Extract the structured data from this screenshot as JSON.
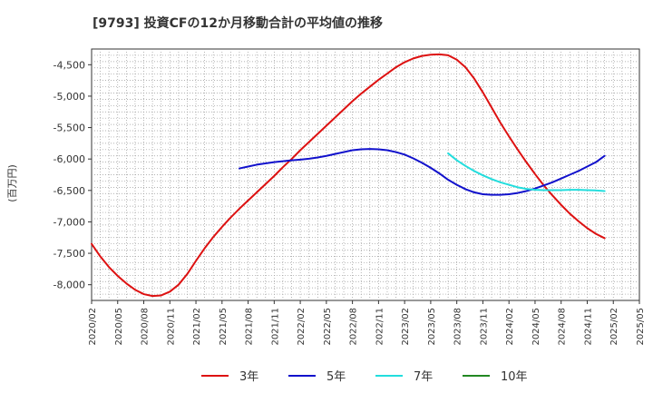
{
  "chart_data": {
    "type": "line",
    "title": "[9793]  投資CFの12か月移動合計の平均値の推移",
    "ylabel": "(百万円)",
    "xlabel": "",
    "ylim": [
      -8250,
      -4250
    ],
    "yticks": [
      -4500,
      -5000,
      -5500,
      -6000,
      -6500,
      -7000,
      -7500,
      -8000
    ],
    "ytick_labels": [
      "-4,500",
      "-5,000",
      "-5,500",
      "-6,000",
      "-6,500",
      "-7,000",
      "-7,500",
      "-8,000"
    ],
    "xlim": [
      "2020-02",
      "2025-05"
    ],
    "xtick_labels": [
      "2020/02",
      "2020/05",
      "2020/08",
      "2020/11",
      "2021/02",
      "2021/05",
      "2021/08",
      "2021/11",
      "2022/02",
      "2022/05",
      "2022/08",
      "2022/11",
      "2023/02",
      "2023/05",
      "2023/08",
      "2023/11",
      "2024/02",
      "2024/05",
      "2024/08",
      "2024/11",
      "2025/02",
      "2025/05"
    ],
    "grid": true,
    "legend_position": "bottom",
    "series": [
      {
        "name": "3年",
        "color": "#dd1111",
        "points": [
          [
            "2020-02",
            -7350
          ],
          [
            "2020-03",
            -7550
          ],
          [
            "2020-04",
            -7720
          ],
          [
            "2020-05",
            -7860
          ],
          [
            "2020-06",
            -7980
          ],
          [
            "2020-07",
            -8080
          ],
          [
            "2020-08",
            -8150
          ],
          [
            "2020-09",
            -8180
          ],
          [
            "2020-10",
            -8170
          ],
          [
            "2020-11",
            -8110
          ],
          [
            "2020-12",
            -8000
          ],
          [
            "2021-01",
            -7830
          ],
          [
            "2021-02",
            -7620
          ],
          [
            "2021-03",
            -7420
          ],
          [
            "2021-04",
            -7240
          ],
          [
            "2021-05",
            -7080
          ],
          [
            "2021-06",
            -6930
          ],
          [
            "2021-07",
            -6790
          ],
          [
            "2021-08",
            -6660
          ],
          [
            "2021-09",
            -6530
          ],
          [
            "2021-10",
            -6400
          ],
          [
            "2021-11",
            -6270
          ],
          [
            "2021-12",
            -6130
          ],
          [
            "2022-01",
            -6000
          ],
          [
            "2022-02",
            -5860
          ],
          [
            "2022-03",
            -5730
          ],
          [
            "2022-04",
            -5600
          ],
          [
            "2022-05",
            -5470
          ],
          [
            "2022-06",
            -5340
          ],
          [
            "2022-07",
            -5210
          ],
          [
            "2022-08",
            -5080
          ],
          [
            "2022-09",
            -4960
          ],
          [
            "2022-10",
            -4850
          ],
          [
            "2022-11",
            -4740
          ],
          [
            "2022-12",
            -4640
          ],
          [
            "2023-01",
            -4540
          ],
          [
            "2023-02",
            -4460
          ],
          [
            "2023-03",
            -4400
          ],
          [
            "2023-04",
            -4360
          ],
          [
            "2023-05",
            -4340
          ],
          [
            "2023-06",
            -4335
          ],
          [
            "2023-07",
            -4350
          ],
          [
            "2023-08",
            -4420
          ],
          [
            "2023-09",
            -4540
          ],
          [
            "2023-10",
            -4720
          ],
          [
            "2023-11",
            -4940
          ],
          [
            "2023-12",
            -5180
          ],
          [
            "2024-01",
            -5420
          ],
          [
            "2024-02",
            -5640
          ],
          [
            "2024-03",
            -5850
          ],
          [
            "2024-04",
            -6050
          ],
          [
            "2024-05",
            -6240
          ],
          [
            "2024-06",
            -6420
          ],
          [
            "2024-07",
            -6580
          ],
          [
            "2024-08",
            -6730
          ],
          [
            "2024-09",
            -6870
          ],
          [
            "2024-10",
            -6990
          ],
          [
            "2024-11",
            -7100
          ],
          [
            "2024-12",
            -7190
          ],
          [
            "2025-01",
            -7260
          ]
        ]
      },
      {
        "name": "5年",
        "color": "#1111cc",
        "points": [
          [
            "2021-07",
            -6150
          ],
          [
            "2021-08",
            -6120
          ],
          [
            "2021-09",
            -6090
          ],
          [
            "2021-10",
            -6070
          ],
          [
            "2021-11",
            -6050
          ],
          [
            "2021-12",
            -6035
          ],
          [
            "2022-01",
            -6020
          ],
          [
            "2022-02",
            -6010
          ],
          [
            "2022-03",
            -5995
          ],
          [
            "2022-04",
            -5975
          ],
          [
            "2022-05",
            -5950
          ],
          [
            "2022-06",
            -5920
          ],
          [
            "2022-07",
            -5890
          ],
          [
            "2022-08",
            -5860
          ],
          [
            "2022-09",
            -5845
          ],
          [
            "2022-10",
            -5840
          ],
          [
            "2022-11",
            -5845
          ],
          [
            "2022-12",
            -5860
          ],
          [
            "2023-01",
            -5890
          ],
          [
            "2023-02",
            -5930
          ],
          [
            "2023-03",
            -5990
          ],
          [
            "2023-04",
            -6060
          ],
          [
            "2023-05",
            -6140
          ],
          [
            "2023-06",
            -6230
          ],
          [
            "2023-07",
            -6330
          ],
          [
            "2023-08",
            -6410
          ],
          [
            "2023-09",
            -6480
          ],
          [
            "2023-10",
            -6530
          ],
          [
            "2023-11",
            -6560
          ],
          [
            "2023-12",
            -6570
          ],
          [
            "2024-01",
            -6570
          ],
          [
            "2024-02",
            -6560
          ],
          [
            "2024-03",
            -6540
          ],
          [
            "2024-04",
            -6510
          ],
          [
            "2024-05",
            -6470
          ],
          [
            "2024-06",
            -6420
          ],
          [
            "2024-07",
            -6370
          ],
          [
            "2024-08",
            -6310
          ],
          [
            "2024-09",
            -6250
          ],
          [
            "2024-10",
            -6190
          ],
          [
            "2024-11",
            -6120
          ],
          [
            "2024-12",
            -6050
          ],
          [
            "2025-01",
            -5950
          ]
        ]
      },
      {
        "name": "7年",
        "color": "#22dddd",
        "points": [
          [
            "2023-07",
            -5910
          ],
          [
            "2023-08",
            -6020
          ],
          [
            "2023-09",
            -6110
          ],
          [
            "2023-10",
            -6190
          ],
          [
            "2023-11",
            -6260
          ],
          [
            "2023-12",
            -6320
          ],
          [
            "2024-01",
            -6370
          ],
          [
            "2024-02",
            -6410
          ],
          [
            "2024-03",
            -6450
          ],
          [
            "2024-04",
            -6475
          ],
          [
            "2024-05",
            -6490
          ],
          [
            "2024-06",
            -6495
          ],
          [
            "2024-07",
            -6495
          ],
          [
            "2024-08",
            -6495
          ],
          [
            "2024-09",
            -6490
          ],
          [
            "2024-10",
            -6490
          ],
          [
            "2024-11",
            -6495
          ],
          [
            "2024-12",
            -6500
          ],
          [
            "2025-01",
            -6510
          ]
        ]
      },
      {
        "name": "10年",
        "color": "#228822",
        "points": []
      }
    ]
  }
}
